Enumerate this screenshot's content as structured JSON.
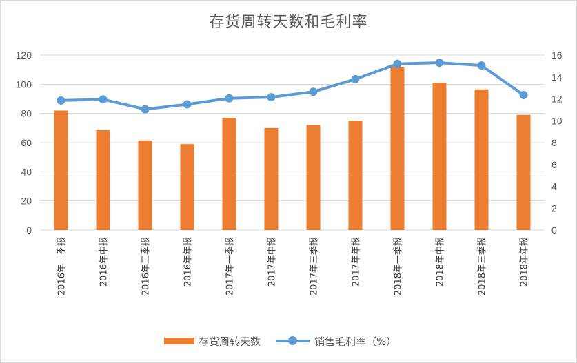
{
  "chart_data": {
    "type": "bar",
    "title": "存货周转天数和毛利率",
    "categories": [
      "2016年一季报",
      "2016年中报",
      "2016年三季报",
      "2016年年报",
      "2017年一季报",
      "2017年中报",
      "2017年三季报",
      "2017年年报",
      "2018年一季报",
      "2018年中报",
      "2018年三季报",
      "2018年年报"
    ],
    "series": [
      {
        "name": "存货周转天数",
        "type": "bar",
        "axis": "left",
        "color": "#ED7D31",
        "values": [
          82,
          68.5,
          61.5,
          59,
          77,
          70,
          72,
          75,
          112,
          101,
          96.5,
          79
        ]
      },
      {
        "name": "销售毛利率（%）",
        "type": "line",
        "axis": "right",
        "color": "#5B9BD5",
        "values": [
          11.85,
          11.95,
          11.05,
          11.5,
          12.05,
          12.15,
          12.65,
          13.8,
          15.2,
          15.3,
          15.05,
          12.35
        ]
      }
    ],
    "ylim_left": [
      0,
      120
    ],
    "yticks_left": [
      0,
      20,
      40,
      60,
      80,
      100,
      120
    ],
    "ylim_right": [
      0,
      16
    ],
    "yticks_right": [
      0,
      2,
      4,
      6,
      8,
      10,
      12,
      14,
      16
    ],
    "grid": true,
    "legend_position": "bottom"
  }
}
